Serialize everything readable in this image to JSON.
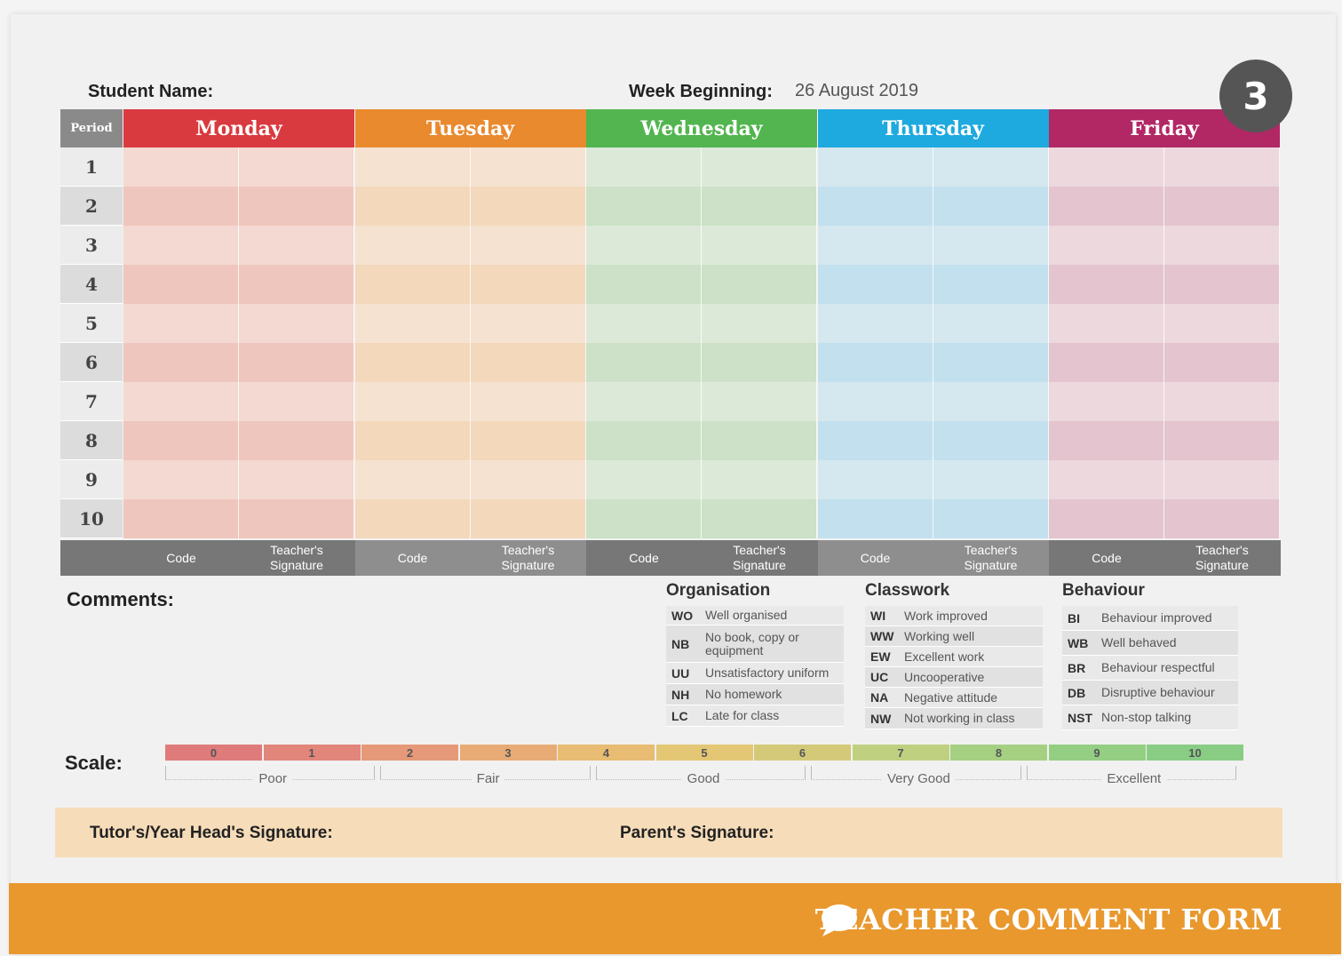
{
  "header": {
    "student_name_label": "Student Name:",
    "week_label": "Week Beginning:",
    "week_value": "26 August 2019",
    "badge": "3"
  },
  "grid": {
    "period_label": "Period",
    "periods": [
      "1",
      "2",
      "3",
      "4",
      "5",
      "6",
      "7",
      "8",
      "9",
      "10"
    ],
    "days": [
      {
        "name": "Monday",
        "color": "#d93a3f",
        "light": "#f3d9d2",
        "dark": "#efc6bd"
      },
      {
        "name": "Tuesday",
        "color": "#e98a2f",
        "light": "#f5e2d0",
        "dark": "#f3d8bc"
      },
      {
        "name": "Wednesday",
        "color": "#52b54f",
        "light": "#dde9d8",
        "dark": "#cce1c7"
      },
      {
        "name": "Thursday",
        "color": "#1ea9df",
        "light": "#d5e7ef",
        "dark": "#c2e0ee"
      },
      {
        "name": "Friday",
        "color": "#b12865",
        "light": "#ecd8dd",
        "dark": "#e3c4cf"
      }
    ],
    "footer_code": "Code",
    "footer_sig": "Teacher's Signature"
  },
  "comments_label": "Comments:",
  "codes": {
    "organisation": {
      "title": "Organisation",
      "items": [
        {
          "key": "WO",
          "desc": "Well organised"
        },
        {
          "key": "NB",
          "desc": "No book, copy or equipment"
        },
        {
          "key": "UU",
          "desc": "Unsatisfactory uniform"
        },
        {
          "key": "NH",
          "desc": "No homework"
        },
        {
          "key": "LC",
          "desc": "Late for class"
        }
      ]
    },
    "classwork": {
      "title": "Classwork",
      "items": [
        {
          "key": "WI",
          "desc": "Work improved"
        },
        {
          "key": "WW",
          "desc": "Working well"
        },
        {
          "key": "EW",
          "desc": "Excellent work"
        },
        {
          "key": "UC",
          "desc": "Uncooperative"
        },
        {
          "key": "NA",
          "desc": "Negative attitude"
        },
        {
          "key": "NW",
          "desc": "Not working in class"
        }
      ]
    },
    "behaviour": {
      "title": "Behaviour",
      "items": [
        {
          "key": "BI",
          "desc": "Behaviour improved"
        },
        {
          "key": "WB",
          "desc": "Well behaved"
        },
        {
          "key": "BR",
          "desc": "Behaviour respectful"
        },
        {
          "key": "DB",
          "desc": "Disruptive behaviour"
        },
        {
          "key": "NST",
          "desc": "Non-stop talking"
        }
      ]
    }
  },
  "scale": {
    "label": "Scale:",
    "values": [
      {
        "n": "0",
        "color": "#e07b7b"
      },
      {
        "n": "1",
        "color": "#e2857a"
      },
      {
        "n": "2",
        "color": "#e69979"
      },
      {
        "n": "3",
        "color": "#e8ab76"
      },
      {
        "n": "4",
        "color": "#e8bc72"
      },
      {
        "n": "5",
        "color": "#e3c774"
      },
      {
        "n": "6",
        "color": "#d4c979"
      },
      {
        "n": "7",
        "color": "#bfd180"
      },
      {
        "n": "8",
        "color": "#a6d081"
      },
      {
        "n": "9",
        "color": "#94ce83"
      },
      {
        "n": "10",
        "color": "#89cc84"
      }
    ],
    "words": [
      "Poor",
      "Fair",
      "Good",
      "Very Good",
      "Excellent"
    ]
  },
  "signatures": {
    "tutor": "Tutor's/Year Head's Signature:",
    "parent": "Parent's Signature:"
  },
  "footer": {
    "title": "TEACHER COMMENT FORM",
    "icon": "speech-bubble-icon"
  }
}
